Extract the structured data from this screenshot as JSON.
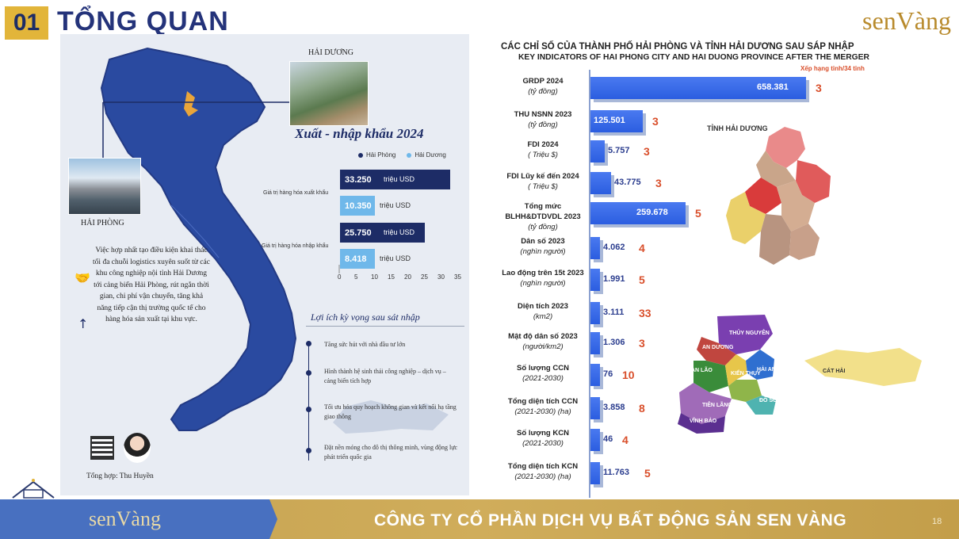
{
  "header": {
    "number": "01",
    "title": "TỔNG QUAN",
    "brand": "senVàng"
  },
  "infographic": {
    "hai_duong_label": "HẢI DƯƠNG",
    "hai_phong_label": "HẢI PHÒNG",
    "trade_title": "Xuất - nhập khẩu 2024",
    "legend": [
      "Hải Phòng",
      "Hải Dương"
    ],
    "colors": {
      "hai_phong": "#1d2c66",
      "hai_duong": "#6fb8ea"
    },
    "export_label": "Giá trị hàng hóa xuất khẩu",
    "import_label": "Giá trị hàng hóa nhập khẩu",
    "unit": "triệu USD",
    "bars": [
      {
        "series": "Hải Phòng",
        "group": "export",
        "value": 33.25,
        "text": "33.250"
      },
      {
        "series": "Hải Dương",
        "group": "export",
        "value": 10.35,
        "text": "10.350"
      },
      {
        "series": "Hải Phòng",
        "group": "import",
        "value": 25.75,
        "text": "25.750"
      },
      {
        "series": "Hải Dương",
        "group": "import",
        "value": 8.418,
        "text": "8.418"
      }
    ],
    "axis_ticks": [
      "0",
      "5",
      "10",
      "15",
      "20",
      "25",
      "30",
      "35"
    ],
    "paragraph": "Việc hợp nhất tạo điều kiện khai thác tối đa chuỗi logistics xuyên suốt từ các khu công nghiệp nội tỉnh Hải Dương tới cảng biển Hải Phòng, rút ngắn thời gian, chi phí vận chuyển, tăng khả năng tiếp cận thị trường quốc tế cho hàng hóa sản xuất tại khu vực.",
    "benefits_title": "Lợi ích kỳ vọng sau sát nhập",
    "benefits": [
      "Tăng sức hút với nhà đầu tư lớn",
      "Hình thành hệ sinh thái công nghiệp – dịch vụ – cảng biển tích hợp",
      "Tối ưu hóa quy hoạch không gian và kết nối hạ tầng giao thông",
      "Đặt nền móng cho đô thị thông minh, vùng động lực phát triển quốc gia"
    ],
    "author": "Tổng hợp: Thu Huyền"
  },
  "chart_data": {
    "type": "bar",
    "title": "CÁC CHỈ SỐ CỦA THÀNH PHỐ HẢI PHÒNG VÀ TỈNH HẢI DƯƠNG SAU SÁP NHẬP",
    "subtitle": "KEY INDICATORS OF HAI PHONG CITY AND HAI DUONG PROVINCE AFTER THE MERGER",
    "note": "Xếp hạng tỉnh/34 tỉnh",
    "rows": [
      {
        "label": "GRDP 2024",
        "unit": "(tỷ đồng)",
        "value": "658.381",
        "rank": "3"
      },
      {
        "label": "THU NSNN 2023",
        "unit": "(tỷ đồng)",
        "value": "125.501",
        "rank": "3"
      },
      {
        "label": "FDI 2024",
        "unit": "( Triệu $)",
        "value": "5.757",
        "rank": "3"
      },
      {
        "label": "FDI Lũy kế đến 2024",
        "unit": "( Triệu $)",
        "value": "43.775",
        "rank": "3"
      },
      {
        "label": "Tổng mức BLHH&DTDVDL 2023",
        "unit": "(tỷ đồng)",
        "value": "259.678",
        "rank": "5"
      },
      {
        "label": "Dân số 2023",
        "unit": "(nghìn người)",
        "value": "4.062",
        "rank": "4"
      },
      {
        "label": "Lao động trên 15t 2023",
        "unit": "(nghìn người)",
        "value": "1.991",
        "rank": "5"
      },
      {
        "label": "Diện tích 2023",
        "unit": "(km2)",
        "value": "3.111",
        "rank": "33"
      },
      {
        "label": "Mật độ dân số 2023",
        "unit": "(người/km2)",
        "value": "1.306",
        "rank": "3"
      },
      {
        "label": "Số lượng CCN",
        "unit": "(2021-2030)",
        "value": "76",
        "rank": "10"
      },
      {
        "label": "Tổng diện tích CCN",
        "unit": "(2021-2030) (ha)",
        "value": "3.858",
        "rank": "8"
      },
      {
        "label": "Số lượng KCN",
        "unit": "(2021-2030)",
        "value": "46",
        "rank": "4"
      },
      {
        "label": "Tổng diện tích KCN",
        "unit": "(2021-2030) (ha)",
        "value": "11.763",
        "rank": "5"
      }
    ],
    "bar_color": "#2f62e6",
    "rank_color": "#d94f2b"
  },
  "map_labels": {
    "tinh_hai_duong": "TỈNH HẢI DƯƠNG",
    "hp_districts": [
      "THỦY NGUYÊN",
      "AN DƯƠNG",
      "AN LÃO",
      "HẢI AN",
      "KIẾN THỤY",
      "TIÊN LÃNG",
      "ĐỒ SƠN",
      "VĨNH BẢO",
      "CÁT HẢI"
    ]
  },
  "footer": {
    "brand": "senVàng",
    "company": "CÔNG TY CỔ PHẦN DỊCH VỤ BẤT ĐỘNG SẢN SEN VÀNG",
    "page": "18"
  }
}
